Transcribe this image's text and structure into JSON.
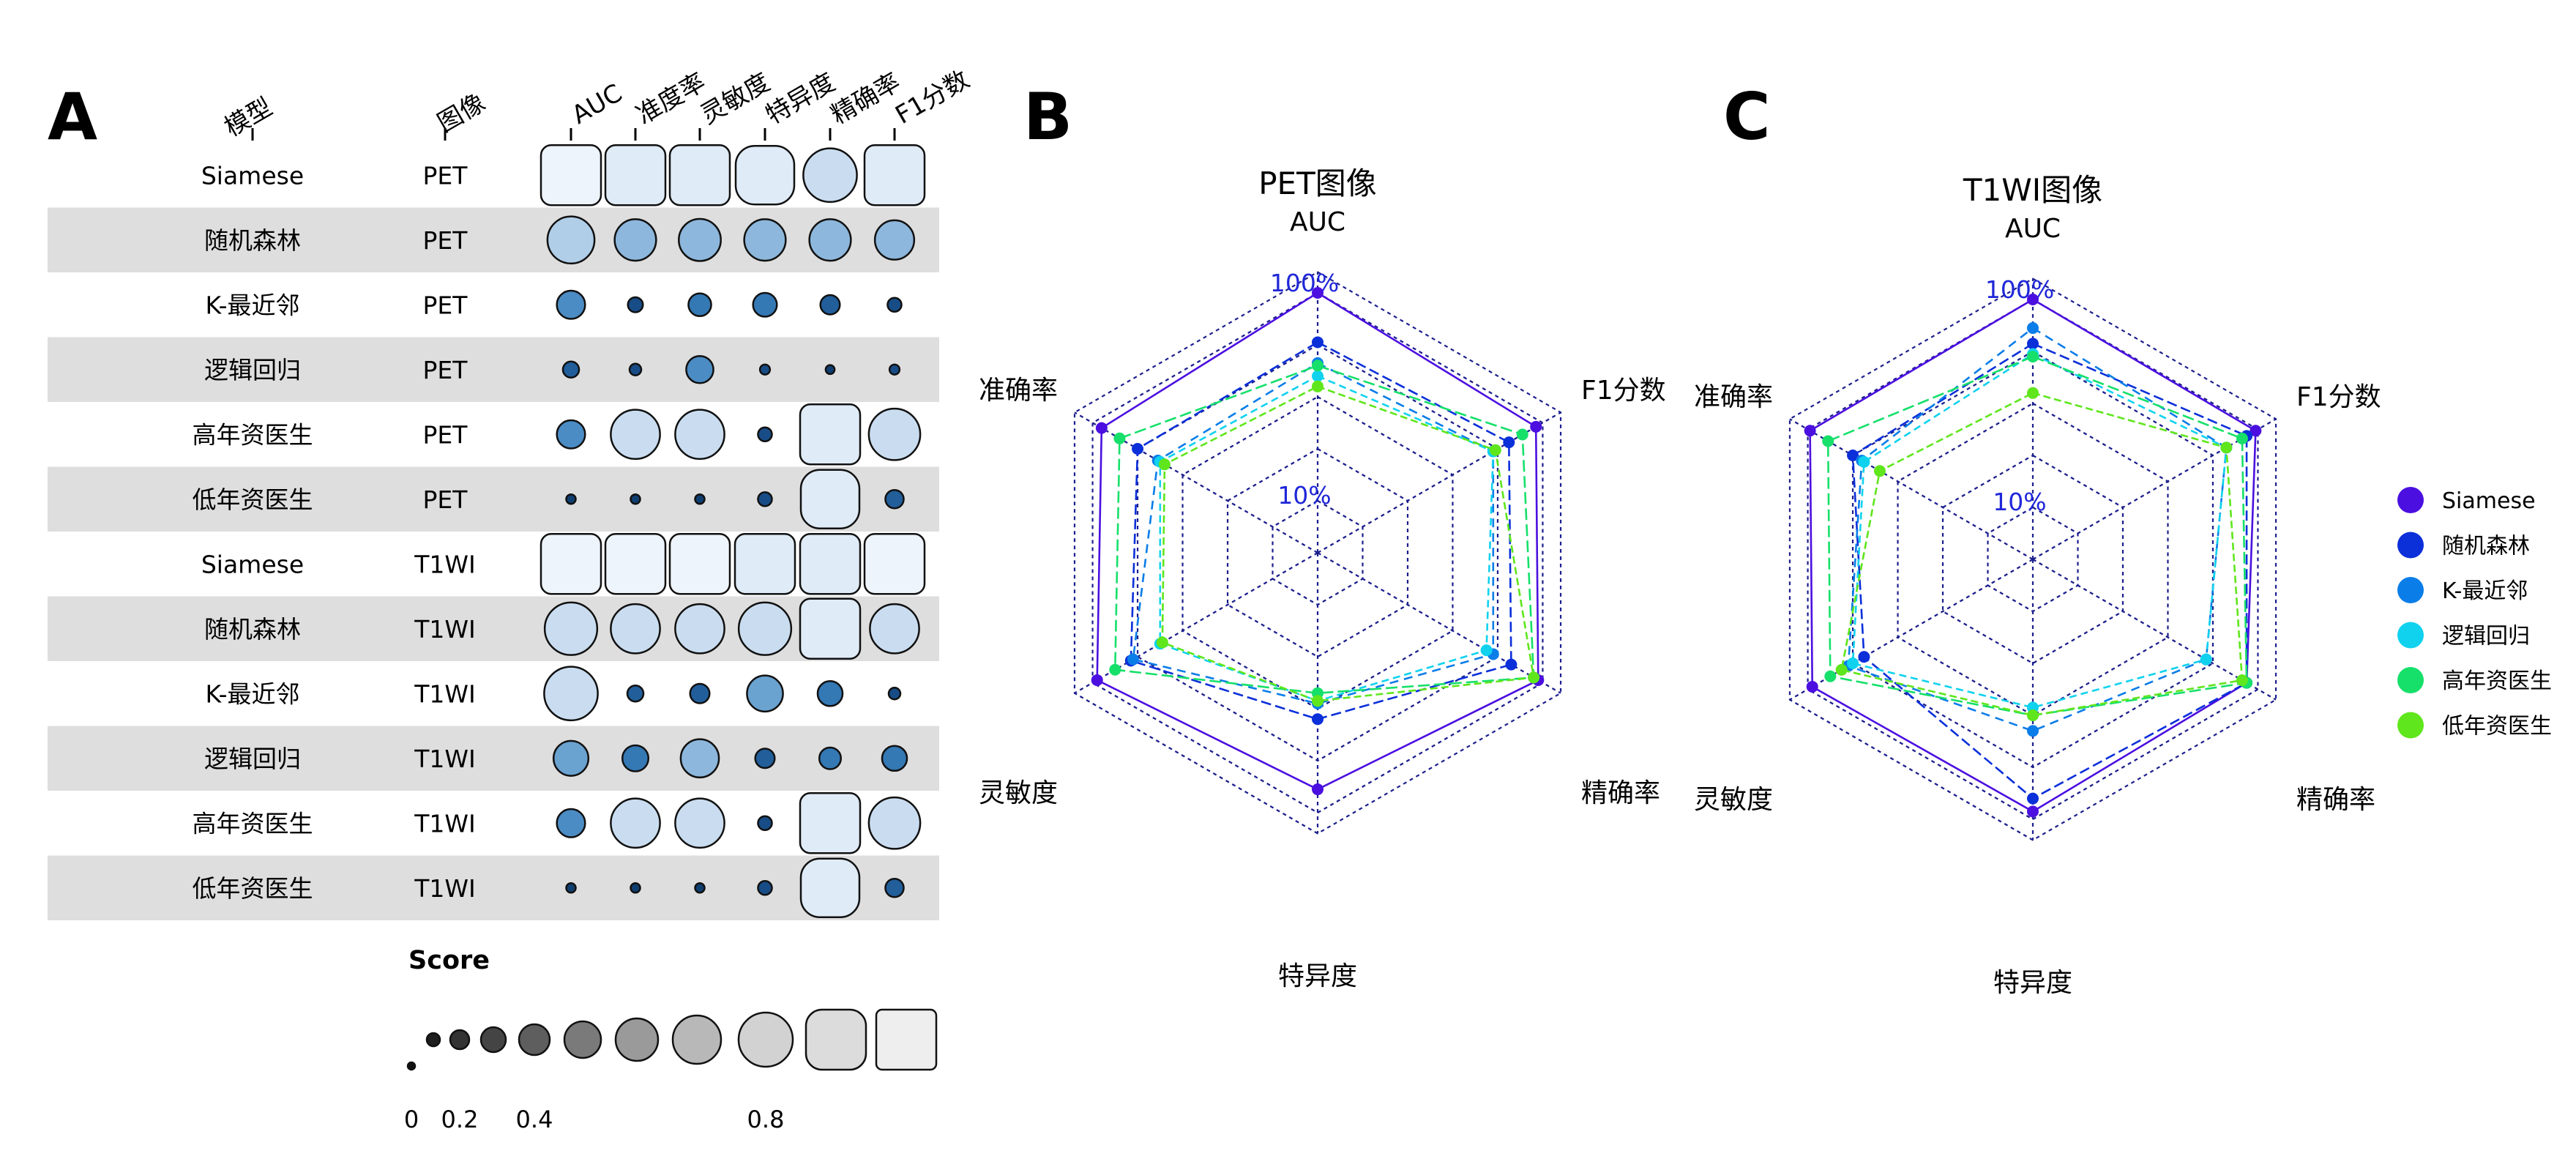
{
  "chart_data": [
    {
      "panel": "A",
      "type": "table",
      "headers": {
        "model": "模型",
        "image": "图像"
      },
      "metrics": [
        "AUC",
        "准度率",
        "灵敏度",
        "特异度",
        "精确率",
        "F1分数"
      ],
      "rows": [
        {
          "model": "Siamese",
          "image": "PET",
          "scores": [
            0.95,
            0.93,
            0.94,
            0.86,
            0.84,
            0.92
          ]
        },
        {
          "model": "随机森林",
          "image": "PET",
          "scores": [
            0.72,
            0.62,
            0.63,
            0.62,
            0.62,
            0.58
          ]
        },
        {
          "model": "K-最近邻",
          "image": "PET",
          "scores": [
            0.38,
            0.14,
            0.28,
            0.3,
            0.22,
            0.12
          ]
        },
        {
          "model": "逻辑回归",
          "image": "PET",
          "scores": [
            0.16,
            0.08,
            0.36,
            0.05,
            0.03,
            0.05
          ]
        },
        {
          "model": "高年资医生",
          "image": "PET",
          "scores": [
            0.38,
            0.76,
            0.76,
            0.12,
            0.92,
            0.8
          ]
        },
        {
          "model": "低年资医生",
          "image": "PET",
          "scores": [
            0.04,
            0.04,
            0.04,
            0.12,
            0.86,
            0.2
          ]
        },
        {
          "model": "Siamese",
          "image": "T1WI",
          "scores": [
            0.96,
            0.96,
            0.96,
            0.94,
            0.94,
            0.96
          ]
        },
        {
          "model": "随机森林",
          "image": "T1WI",
          "scores": [
            0.82,
            0.76,
            0.76,
            0.82,
            0.9,
            0.76
          ]
        },
        {
          "model": "K-最近邻",
          "image": "T1WI",
          "scores": [
            0.84,
            0.16,
            0.22,
            0.52,
            0.32,
            0.08
          ]
        },
        {
          "model": "逻辑回归",
          "image": "T1WI",
          "scores": [
            0.5,
            0.34,
            0.56,
            0.22,
            0.26,
            0.32
          ]
        },
        {
          "model": "高年资医生",
          "image": "T1WI",
          "scores": [
            0.38,
            0.76,
            0.76,
            0.12,
            0.92,
            0.8
          ]
        },
        {
          "model": "低年资医生",
          "image": "T1WI",
          "scores": [
            0.04,
            0.04,
            0.04,
            0.12,
            0.86,
            0.2
          ]
        }
      ],
      "legend": {
        "title": "Score",
        "levels": [
          0.0,
          0.1,
          0.2,
          0.3,
          0.4,
          0.5,
          0.6,
          0.7,
          0.8,
          0.9,
          1.0
        ],
        "tick_labels": [
          {
            "value": 0,
            "label": "0"
          },
          {
            "value": 0.2,
            "label": "0.2"
          },
          {
            "value": 0.4,
            "label": "0.4"
          },
          {
            "value": 0.8,
            "label": "0.8"
          }
        ]
      }
    },
    {
      "panel": "B",
      "type": "radar",
      "title": "PET图像",
      "axes": [
        "AUC",
        "F1分数",
        "精确率",
        "特异度",
        "灵敏度",
        "准确率"
      ],
      "range_labels": {
        "inner": "10%",
        "outer": "100%"
      },
      "series": [
        {
          "name": "Siamese",
          "values": [
            1.0,
            0.97,
            0.98,
            0.91,
            0.98,
            0.96
          ]
        },
        {
          "name": "随机森林",
          "values": [
            0.81,
            0.85,
            0.86,
            0.64,
            0.83,
            0.8
          ]
        },
        {
          "name": "K-最近邻",
          "values": [
            0.73,
            0.78,
            0.78,
            0.58,
            0.82,
            0.71
          ]
        },
        {
          "name": "逻辑回归",
          "values": [
            0.68,
            0.78,
            0.75,
            0.57,
            0.7,
            0.7
          ]
        },
        {
          "name": "高年资医生",
          "values": [
            0.72,
            0.91,
            0.96,
            0.54,
            0.9,
            0.88
          ]
        },
        {
          "name": "低年资医生",
          "values": [
            0.64,
            0.79,
            0.96,
            0.57,
            0.69,
            0.68
          ]
        }
      ]
    },
    {
      "panel": "C",
      "type": "radar",
      "title": "T1WI图像",
      "axes": [
        "AUC",
        "F1分数",
        "精确率",
        "特异度",
        "灵敏度",
        "准确率"
      ],
      "range_labels": {
        "inner": "10%",
        "outer": "100%"
      },
      "series": [
        {
          "name": "Siamese",
          "values": [
            1.0,
            0.99,
            0.95,
            0.97,
            0.98,
            0.99
          ]
        },
        {
          "name": "随机森林",
          "values": [
            0.83,
            0.95,
            0.95,
            0.92,
            0.75,
            0.8
          ]
        },
        {
          "name": "K-最近邻",
          "values": [
            0.89,
            0.86,
            0.77,
            0.66,
            0.82,
            0.76
          ]
        },
        {
          "name": "逻辑回归",
          "values": [
            0.79,
            0.86,
            0.77,
            0.57,
            0.8,
            0.75
          ]
        },
        {
          "name": "高年资医生",
          "values": [
            0.78,
            0.93,
            0.95,
            0.6,
            0.9,
            0.91
          ]
        },
        {
          "name": "低年资医生",
          "values": [
            0.64,
            0.86,
            0.93,
            0.6,
            0.85,
            0.68
          ]
        }
      ]
    }
  ],
  "panel_labels": [
    "A",
    "B",
    "C"
  ],
  "colors": {
    "series": [
      "#4B0FE0",
      "#0B2FD9",
      "#0A7DE8",
      "#10D2EE",
      "#16E06A",
      "#5FE61C"
    ],
    "row_band": "#DEDEDE",
    "grid": "#1B1E8C",
    "range_label": "#1F27D8",
    "score_fill": [
      "#EEF4FB",
      "#DFEBF7",
      "#CADDF0",
      "#B0CEE8",
      "#8DB7DC",
      "#6AA2D0",
      "#4B8CC4",
      "#3478B4",
      "#215E9A",
      "#184C86",
      "#0F3E70"
    ],
    "legend_fill": [
      "#111111",
      "#1E1E1E",
      "#333333",
      "#444444",
      "#5E5E5E",
      "#7A7A7A",
      "#9A9A9A",
      "#B8B8B8",
      "#D2D2D2",
      "#DCDCDC",
      "#EEEEEE"
    ]
  }
}
